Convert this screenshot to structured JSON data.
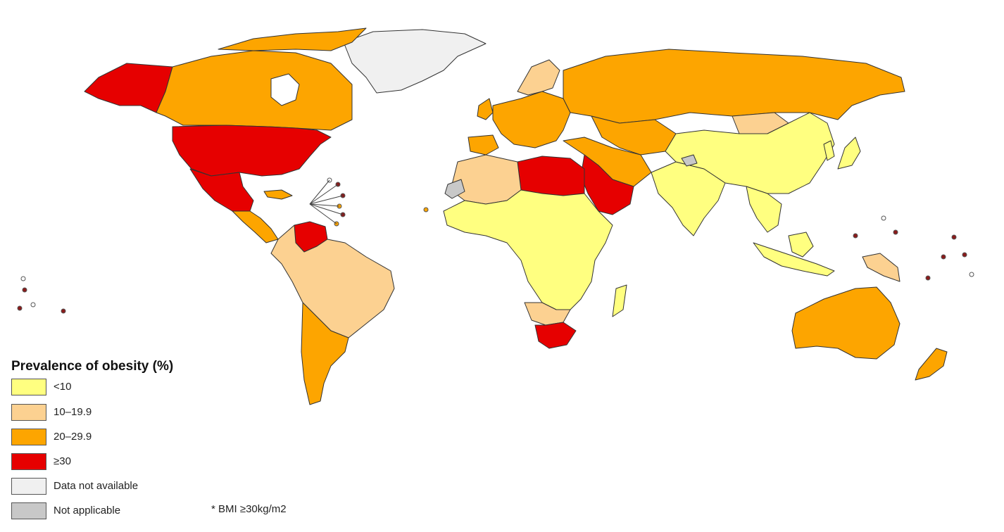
{
  "legend": {
    "title": "Prevalence of obesity (%)",
    "items": [
      {
        "label": "<10",
        "color": "#ffff80"
      },
      {
        "label": "10–19.9",
        "color": "#fcd191"
      },
      {
        "label": "20–29.9",
        "color": "#fda500"
      },
      {
        "label": "≥30",
        "color": "#e60000"
      },
      {
        "label": "Data not available",
        "color": "#f0f0f0"
      },
      {
        "label": "Not applicable",
        "color": "#c8c8c8"
      }
    ]
  },
  "footnote": "* BMI ≥30kg/m2",
  "map_colors": {
    "under_10": "#ffff80",
    "from_10_to_19_9": "#fcd191",
    "from_20_to_29_9": "#fda500",
    "over_30": "#e60000",
    "data_not_available": "#f0f0f0",
    "not_applicable": "#c8c8c8"
  }
}
